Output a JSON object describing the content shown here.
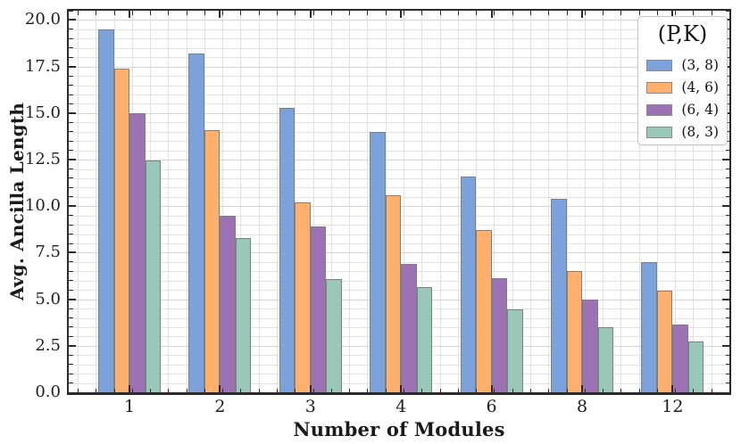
{
  "chart_data": {
    "type": "bar",
    "title": "",
    "xlabel": "Number of Modules",
    "ylabel": "Avg. Ancilla Length",
    "legend_title": "(P,K)",
    "legend_position": "upper right",
    "grid": "major and minor, both axes, light gray",
    "categories": [
      "1",
      "2",
      "3",
      "4",
      "6",
      "8",
      "12"
    ],
    "series": [
      {
        "name": "(3, 8)",
        "color": "#7BA2DB",
        "values": [
          19.5,
          18.2,
          15.3,
          14.0,
          11.6,
          10.4,
          7.0
        ]
      },
      {
        "name": "(4, 6)",
        "color": "#FFB06C",
        "values": [
          17.4,
          14.1,
          10.2,
          10.6,
          8.7,
          6.5,
          5.45
        ]
      },
      {
        "name": "(6, 4)",
        "color": "#9C72B4",
        "values": [
          15.0,
          9.5,
          8.9,
          6.9,
          6.15,
          5.0,
          3.65
        ]
      },
      {
        "name": "(8, 3)",
        "color": "#9AC8B8",
        "values": [
          12.45,
          8.3,
          6.1,
          5.65,
          4.45,
          3.5,
          2.75
        ]
      }
    ],
    "ylim": [
      0,
      20.5
    ],
    "yticks": [
      0.0,
      2.5,
      5.0,
      7.5,
      10.0,
      12.5,
      15.0,
      17.5,
      20.0
    ],
    "ytick_labels": [
      "0.0",
      "2.5",
      "5.0",
      "7.5",
      "10.0",
      "12.5",
      "15.0",
      "17.5",
      "20.0"
    ],
    "y_minor_step": 0.5,
    "bar_edge_color": "#7f7f7f"
  },
  "styles": {
    "grid_color": "#e2e2e2",
    "spine_color": "#2b2b2b",
    "text_color": "#1a1a1a",
    "legend_border_color": "#c7c7c7"
  }
}
